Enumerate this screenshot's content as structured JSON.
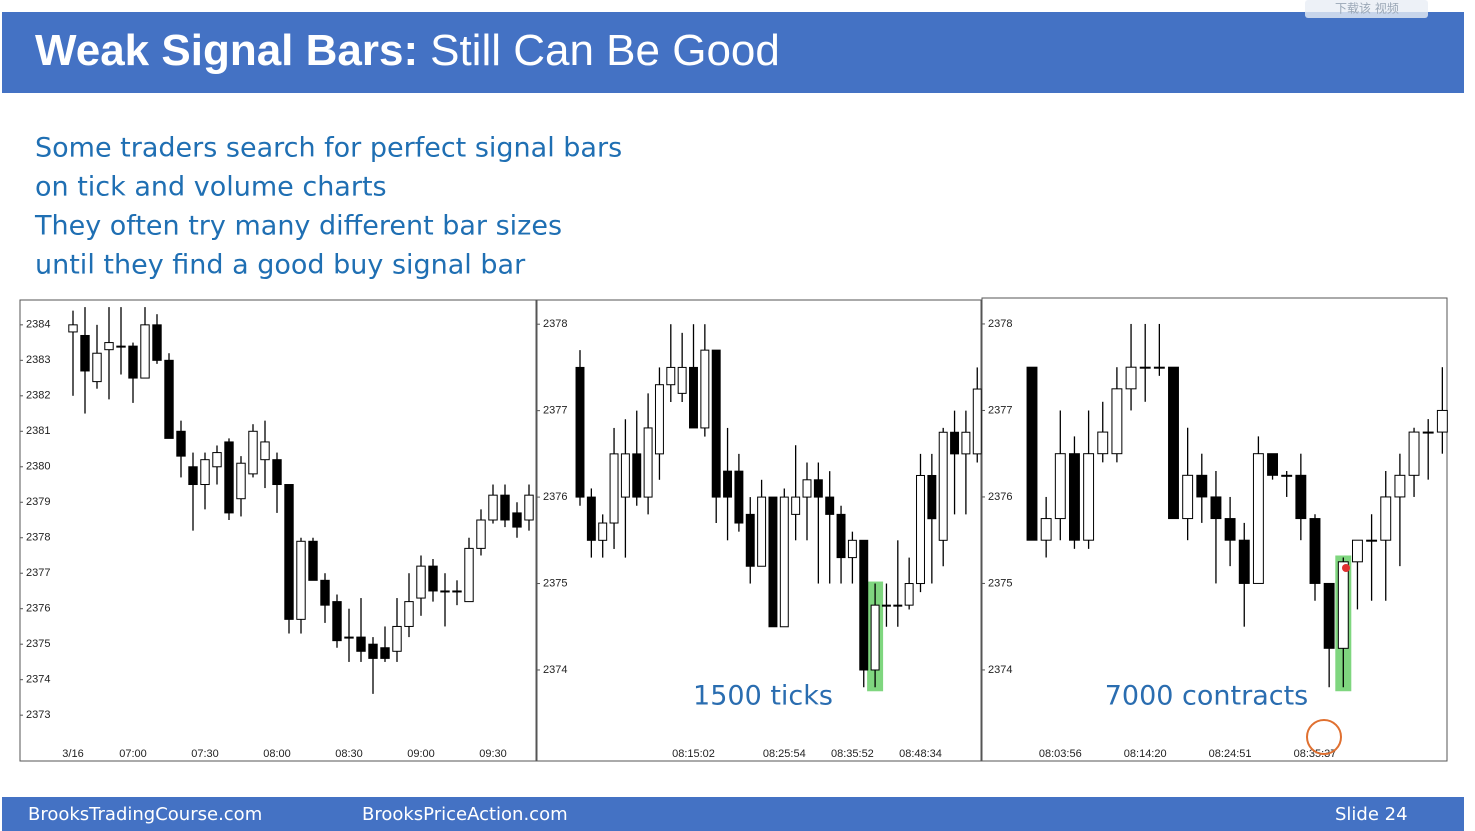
{
  "header": {
    "title_bold": "Weak Signal Bars:",
    "title_rest": "Still Can Be Good"
  },
  "overlay": "下载该 视频",
  "text_lines": [
    "Some traders search for perfect signal bars",
    "on tick and volume charts",
    "They often try many different bar sizes",
    "until they find a good buy signal bar"
  ],
  "chart_data": [
    {
      "type": "candlestick",
      "categories": [
        "3/16",
        null,
        null,
        null,
        null,
        "07:00",
        null,
        null,
        null,
        null,
        null,
        "07:30",
        null,
        null,
        null,
        null,
        null,
        "08:00",
        null,
        null,
        null,
        null,
        null,
        "08:30",
        null,
        null,
        null,
        null,
        null,
        "09:00",
        null,
        null,
        null,
        null,
        null,
        "09:30",
        null,
        null,
        null
      ],
      "ohlc": [
        [
          2383.8,
          2384.4,
          2382.0,
          2384.0
        ],
        [
          2383.7,
          2384.5,
          2381.5,
          2382.7
        ],
        [
          2382.4,
          2384.0,
          2382.2,
          2383.2
        ],
        [
          2383.3,
          2384.5,
          2381.9,
          2383.5
        ],
        [
          2383.4,
          2384.5,
          2382.6,
          2383.4
        ],
        [
          2383.4,
          2383.5,
          2381.8,
          2382.5
        ],
        [
          2382.5,
          2384.5,
          2382.5,
          2384.0
        ],
        [
          2384.0,
          2384.3,
          2382.9,
          2383.0
        ],
        [
          2383.0,
          2383.2,
          2380.8,
          2380.8
        ],
        [
          2381.0,
          2381.3,
          2379.7,
          2380.3
        ],
        [
          2380.0,
          2380.4,
          2378.2,
          2379.5
        ],
        [
          2379.5,
          2380.4,
          2378.8,
          2380.2
        ],
        [
          2380.0,
          2380.6,
          2379.5,
          2380.4
        ],
        [
          2380.7,
          2380.8,
          2378.5,
          2378.7
        ],
        [
          2379.1,
          2380.3,
          2378.6,
          2380.1
        ],
        [
          2379.8,
          2381.2,
          2379.7,
          2381.0
        ],
        [
          2380.2,
          2381.3,
          2379.4,
          2380.7
        ],
        [
          2380.2,
          2380.4,
          2378.7,
          2379.5
        ],
        [
          2379.5,
          2379.5,
          2375.3,
          2375.7
        ],
        [
          2375.7,
          2378.0,
          2375.3,
          2377.9
        ],
        [
          2377.9,
          2378.0,
          2376.8,
          2376.8
        ],
        [
          2376.8,
          2377.0,
          2375.6,
          2376.1
        ],
        [
          2376.2,
          2376.4,
          2374.9,
          2375.1
        ],
        [
          2375.2,
          2376.0,
          2374.5,
          2375.2
        ],
        [
          2375.2,
          2376.3,
          2374.5,
          2374.8
        ],
        [
          2375.0,
          2375.2,
          2373.6,
          2374.6
        ],
        [
          2374.9,
          2375.5,
          2374.5,
          2374.6
        ],
        [
          2374.8,
          2376.3,
          2374.5,
          2375.5
        ],
        [
          2375.5,
          2377.0,
          2375.2,
          2376.2
        ],
        [
          2376.3,
          2377.5,
          2375.8,
          2377.2
        ],
        [
          2377.2,
          2377.4,
          2376.2,
          2376.5
        ],
        [
          2376.5,
          2377.0,
          2375.5,
          2376.5
        ],
        [
          2376.5,
          2376.8,
          2376.1,
          2376.5
        ],
        [
          2376.2,
          2378.0,
          2376.2,
          2377.7
        ],
        [
          2377.7,
          2378.8,
          2377.5,
          2378.5
        ],
        [
          2378.5,
          2379.5,
          2378.4,
          2379.2
        ],
        [
          2379.2,
          2379.5,
          2378.3,
          2378.5
        ],
        [
          2378.7,
          2379.0,
          2378.0,
          2378.3
        ],
        [
          2378.5,
          2379.5,
          2378.2,
          2379.2
        ]
      ],
      "ylim": [
        2372.3,
        2384.7
      ],
      "yticks": [
        2373,
        2374,
        2375,
        2376,
        2377,
        2378,
        2379,
        2380,
        2381,
        2382,
        2383,
        2384
      ],
      "up_color": "#ffffff",
      "down_color": "#000000"
    },
    {
      "type": "candlestick",
      "categories": [
        null,
        null,
        null,
        null,
        null,
        null,
        null,
        null,
        null,
        null,
        "08:15:02",
        null,
        null,
        null,
        null,
        null,
        null,
        null,
        "08:25:54",
        null,
        null,
        null,
        null,
        null,
        "08:35:52",
        null,
        null,
        null,
        null,
        null,
        "08:48:34",
        null,
        null,
        null,
        null,
        null
      ],
      "ohlc": [
        [
          2377.5,
          2377.7,
          2375.9,
          2376.0
        ],
        [
          2376.0,
          2376.1,
          2375.3,
          2375.5
        ],
        [
          2375.5,
          2375.8,
          2375.3,
          2375.7
        ],
        [
          2375.7,
          2376.8,
          2375.4,
          2376.5
        ],
        [
          2376.0,
          2376.9,
          2375.3,
          2376.5
        ],
        [
          2376.5,
          2377.0,
          2375.9,
          2376.0
        ],
        [
          2376.0,
          2377.2,
          2375.8,
          2376.8
        ],
        [
          2376.5,
          2377.5,
          2376.2,
          2377.3
        ],
        [
          2377.3,
          2378.0,
          2377.1,
          2377.5
        ],
        [
          2377.2,
          2377.9,
          2377.1,
          2377.5
        ],
        [
          2377.5,
          2378.0,
          2376.8,
          2376.8
        ],
        [
          2376.8,
          2378.0,
          2376.7,
          2377.7
        ],
        [
          2377.7,
          2377.7,
          2375.7,
          2376.0
        ],
        [
          2376.3,
          2376.8,
          2375.5,
          2376.0
        ],
        [
          2376.3,
          2376.5,
          2375.6,
          2375.7
        ],
        [
          2375.8,
          2376.0,
          2375.0,
          2375.2
        ],
        [
          2375.2,
          2376.2,
          2375.2,
          2376.0
        ],
        [
          2376.0,
          2376.0,
          2374.5,
          2374.5
        ],
        [
          2374.5,
          2376.1,
          2374.5,
          2376.0
        ],
        [
          2375.8,
          2376.6,
          2375.5,
          2376.0
        ],
        [
          2376.0,
          2376.4,
          2375.5,
          2376.2
        ],
        [
          2376.2,
          2376.4,
          2375.0,
          2376.0
        ],
        [
          2376.0,
          2376.3,
          2375.0,
          2375.8
        ],
        [
          2375.8,
          2375.9,
          2375.0,
          2375.3
        ],
        [
          2375.3,
          2375.6,
          2375.0,
          2375.5
        ],
        [
          2375.5,
          2375.5,
          2373.8,
          2374.0
        ],
        [
          2374.0,
          2375.0,
          2373.8,
          2374.75
        ],
        [
          2374.75,
          2375.0,
          2374.5,
          2374.75
        ],
        [
          2374.75,
          2375.5,
          2374.5,
          2374.75
        ],
        [
          2374.75,
          2375.3,
          2374.7,
          2375.0
        ],
        [
          2375.0,
          2376.5,
          2374.9,
          2376.25
        ],
        [
          2376.25,
          2376.5,
          2375.0,
          2375.75
        ],
        [
          2375.5,
          2376.8,
          2375.2,
          2376.75
        ],
        [
          2376.75,
          2377.0,
          2375.8,
          2376.5
        ],
        [
          2376.5,
          2377.0,
          2375.8,
          2376.75
        ],
        [
          2376.5,
          2377.5,
          2376.4,
          2377.25
        ]
      ],
      "ylim": [
        2373.19,
        2378.28
      ],
      "yticks": [
        2374,
        2375,
        2376,
        2377,
        2378
      ],
      "up_color": "#ffffff",
      "down_color": "#000000",
      "highlight_bar": 26,
      "highlight_color": "#7fd67f",
      "annotation": "1500 ticks"
    },
    {
      "type": "candlestick",
      "categories": [
        null,
        null,
        "08:03:56",
        null,
        null,
        null,
        null,
        null,
        "08:14:20",
        null,
        null,
        null,
        null,
        null,
        "08:24:51",
        null,
        null,
        null,
        null,
        null,
        "08:35:37",
        null,
        null,
        null,
        null,
        null,
        null,
        null,
        null,
        null
      ],
      "ohlc": [
        [
          2377.5,
          2377.5,
          2375.5,
          2375.5
        ],
        [
          2375.5,
          2376.0,
          2375.3,
          2375.75
        ],
        [
          2375.75,
          2377.0,
          2375.5,
          2376.5
        ],
        [
          2376.5,
          2376.7,
          2375.4,
          2375.5
        ],
        [
          2375.5,
          2377.0,
          2375.4,
          2376.5
        ],
        [
          2376.5,
          2377.1,
          2376.4,
          2376.75
        ],
        [
          2376.5,
          2377.5,
          2376.4,
          2377.25
        ],
        [
          2377.25,
          2378.0,
          2377.0,
          2377.5
        ],
        [
          2377.5,
          2378.0,
          2377.1,
          2377.5
        ],
        [
          2377.5,
          2378.0,
          2377.4,
          2377.5
        ],
        [
          2377.5,
          2377.5,
          2375.75,
          2375.75
        ],
        [
          2375.75,
          2376.8,
          2375.5,
          2376.25
        ],
        [
          2376.25,
          2376.5,
          2375.7,
          2376.0
        ],
        [
          2376.0,
          2376.3,
          2375.0,
          2375.75
        ],
        [
          2375.75,
          2376.0,
          2375.2,
          2375.5
        ],
        [
          2375.5,
          2375.7,
          2374.5,
          2375.0
        ],
        [
          2375.0,
          2376.7,
          2375.0,
          2376.5
        ],
        [
          2376.5,
          2376.5,
          2376.2,
          2376.25
        ],
        [
          2376.25,
          2376.3,
          2376.0,
          2376.25
        ],
        [
          2376.25,
          2376.5,
          2375.5,
          2375.75
        ],
        [
          2375.75,
          2375.8,
          2374.8,
          2375.0
        ],
        [
          2375.0,
          2375.0,
          2373.8,
          2374.25
        ],
        [
          2374.25,
          2375.3,
          2373.8,
          2375.25
        ],
        [
          2375.25,
          2375.5,
          2374.7,
          2375.5
        ],
        [
          2375.5,
          2375.8,
          2374.8,
          2375.5
        ],
        [
          2375.5,
          2376.3,
          2374.8,
          2376.0
        ],
        [
          2376.0,
          2376.5,
          2375.2,
          2376.25
        ],
        [
          2376.25,
          2376.8,
          2376.0,
          2376.75
        ],
        [
          2376.75,
          2376.9,
          2376.2,
          2376.75
        ],
        [
          2376.75,
          2377.5,
          2376.5,
          2377.0
        ]
      ],
      "ylim": [
        2373.19,
        2378.3
      ],
      "yticks": [
        2374,
        2375,
        2376,
        2377,
        2378
      ],
      "up_color": "#ffffff",
      "down_color": "#000000",
      "highlight_bar": 22,
      "highlight_color": "#7fd67f",
      "annotation": "7000 contracts"
    }
  ],
  "footer": {
    "site1": "BrooksTradingCourse.com",
    "site2": "BrooksPriceAction.com",
    "slide": "Slide  24"
  }
}
